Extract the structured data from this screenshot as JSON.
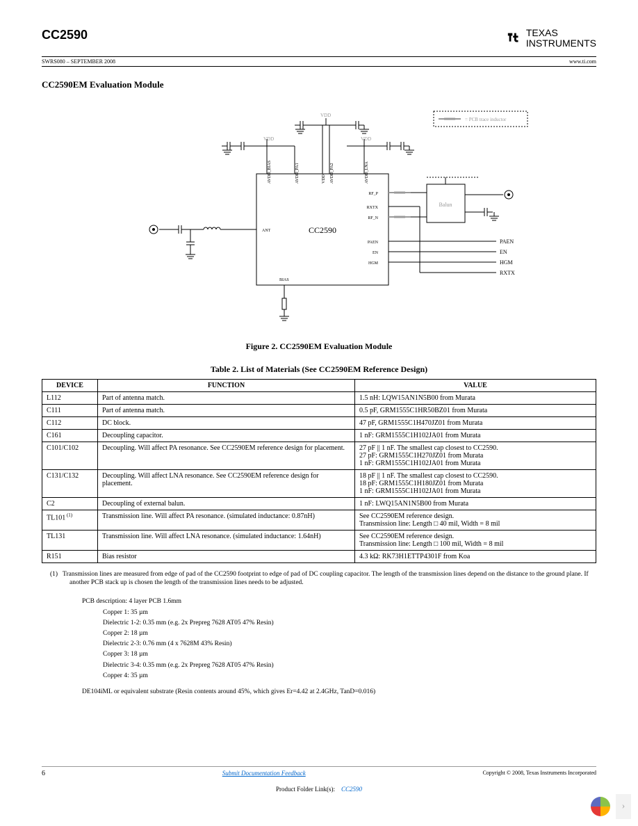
{
  "header": {
    "part_number": "CC2590",
    "brand_top": "TEXAS",
    "brand_bottom": "INSTRUMENTS",
    "doc_code": "SWRS080 – SEPTEMBER 2008",
    "site": "www.ti.com"
  },
  "section": {
    "title": "CC2590EM Evaluation Module"
  },
  "figure": {
    "caption": "Figure 2. CC2590EM Evaluation Module",
    "chip_label": "CC2590",
    "balun_label": "Balun",
    "legend_label": "= PCB trace inductor",
    "pins_top": [
      "AVDD_BIAS",
      "AVDD_PA1",
      "VDD",
      "AVDD_PA2",
      "AVDD_LNA"
    ],
    "pins_right": [
      "RF_P",
      "RXTX",
      "RF_N",
      "PAEN",
      "EN",
      "HGM"
    ],
    "pin_ant": "ANT",
    "pin_bias": "BIAS",
    "labels_right": [
      "PAEN",
      "EN",
      "HGM",
      "RXTX"
    ],
    "vdd_label": "VDD",
    "colors": {
      "stroke": "#000000",
      "gray": "#999999"
    }
  },
  "table": {
    "caption": "Table 2. List of Materials (See CC2590EM Reference Design)",
    "columns": [
      "DEVICE",
      "FUNCTION",
      "VALUE"
    ],
    "rows": [
      {
        "device": "L112",
        "function": "Part of antenna match.",
        "value": "1.5 nH: LQW15AN1N5B00 from Murata"
      },
      {
        "device": "C111",
        "function": "Part of antenna match.",
        "value": "0.5 pF, GRM1555C1HR50BZ01 from Murata"
      },
      {
        "device": "C112",
        "function": "DC block.",
        "value": "47 pF, GRM1555C1H470JZ01 from Murata"
      },
      {
        "device": "C161",
        "function": "Decoupling capacitor.",
        "value": "1 nF: GRM1555C1H102JA01 from Murata"
      },
      {
        "device": "C101/C102",
        "function": "Decoupling. Will affect PA resonance. See CC2590EM reference design for placement.",
        "value": "27 pF || 1 nF. The smallest cap closest to CC2590.\n27 pF: GRM1555C1H270JZ01 from Murata\n1 nF: GRM1555C1H102JA01 from Murata"
      },
      {
        "device": "C131/C132",
        "function": "Decoupling. Will affect LNA resonance. See CC2590EM reference design for placement.",
        "value": "18 pF || 1 nF. The smallest cap closest to CC2590.\n18 pF: GRM1555C1H180JZ01 from Murata\n1 nF: GRM1555C1H102JA01 from Murata"
      },
      {
        "device": "C2",
        "function": "Decoupling of external balun.",
        "value": "1 nF: LWQ15AN1N5B00 from Murata"
      },
      {
        "device": "TL101",
        "sup": "(1)",
        "function": "Transmission line. Will affect PA resonance. (simulated inductance: 0.87nH)",
        "value": "See CC2590EM reference design.\nTransmission line: Length □ 40 mil, Width = 8 mil"
      },
      {
        "device": "TL131",
        "function": "Transmission line. Will affect LNA resonance. (simulated inductance: 1.64nH)",
        "value": "See CC2590EM reference design.\nTransmission line: Length □ 100 mil, Width = 8 mil"
      },
      {
        "device": "R151",
        "function": "Bias resistor",
        "value": "4.3 kΩ: RK73H1ETTP4301F from Koa"
      }
    ]
  },
  "footnote": {
    "marker": "(1)",
    "text": "Transmission lines are measured from edge of pad of the CC2590 footprint to edge of pad of DC coupling capacitor. The length of the transmission lines depend on the distance to the ground plane. If another PCB stack up is chosen the length of the transmission lines needs to be adjusted."
  },
  "pcb": {
    "title": "PCB description: 4 layer PCB 1.6mm",
    "lines": [
      "Copper 1: 35 µm",
      "Dielectric 1-2: 0.35 mm (e.g. 2x Prepreg 7628 AT05 47% Resin)",
      "Copper 2: 18 µm",
      "Dielectric 2-3: 0.76 mm (4 x 7628M 43% Resin)",
      "Copper 3: 18 µm",
      "Dielectric 3-4: 0.35 mm (e.g. 2x Prepreg 7628 AT05 47% Resin)",
      "Copper 4: 35 µm"
    ],
    "substrate": "DE104iML or equivalent substrate (Resin contents around 45%, which gives Er=4.42 at 2.4GHz, TanD=0.016)"
  },
  "footer": {
    "page": "6",
    "feedback": "Submit Documentation Feedback",
    "copyright": "Copyright © 2008, Texas Instruments Incorporated",
    "product_label": "Product Folder Link(s):",
    "product_link": "CC2590"
  }
}
